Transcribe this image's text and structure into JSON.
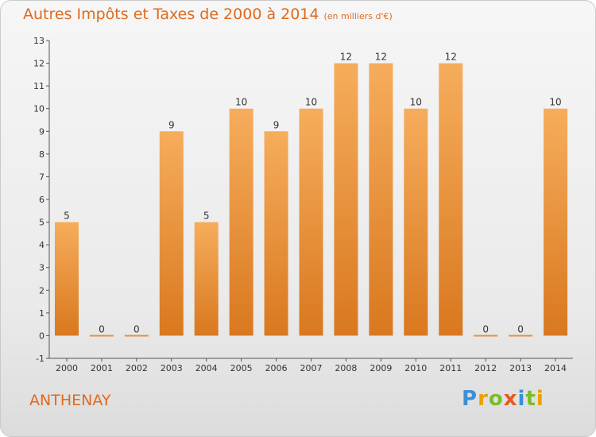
{
  "header": {
    "title": "Autres Impôts et Taxes de 2000 à 2014",
    "unit": "(en milliers d'€)"
  },
  "footer": {
    "commune": "ANTHENAY",
    "logo": "Proxiti"
  },
  "colors": {
    "bar": "#f09a3e",
    "bar_light": "#f6ad5c",
    "bar_dark": "#d9781f",
    "accent": "#e06a1c"
  },
  "chart_data": {
    "type": "bar",
    "title": "Autres Impôts et Taxes de 2000 à 2014",
    "subtitle": "(en milliers d'€)",
    "categories": [
      "2000",
      "2001",
      "2002",
      "2003",
      "2004",
      "2005",
      "2006",
      "2007",
      "2008",
      "2009",
      "2010",
      "2011",
      "2012",
      "2013",
      "2014"
    ],
    "values": [
      5,
      0,
      0,
      9,
      5,
      10,
      9,
      10,
      12,
      12,
      10,
      12,
      0,
      0,
      10
    ],
    "ylim": [
      -1,
      13
    ],
    "yticks": [
      -1,
      0,
      1,
      2,
      3,
      4,
      5,
      6,
      7,
      8,
      9,
      10,
      11,
      12,
      13
    ],
    "grid": false,
    "xlabel": "",
    "ylabel": ""
  }
}
